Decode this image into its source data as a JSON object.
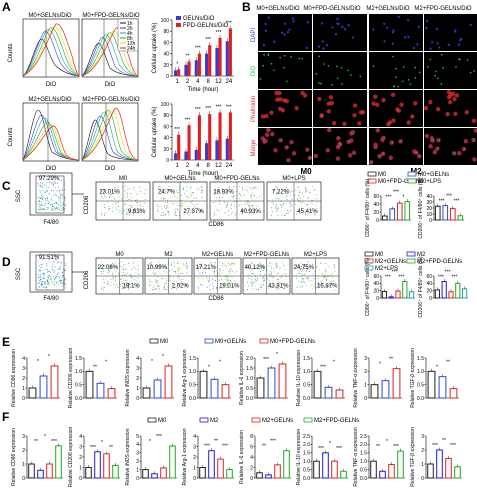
{
  "panel_labels": {
    "A": "A",
    "B": "B",
    "C": "C",
    "D": "D",
    "E": "E",
    "F": "F"
  },
  "colors": {
    "gelns": "#3a3ac8",
    "fpd": "#e02020",
    "m0": "#222222",
    "m2": "#1a1adc",
    "m2gelns": "#e02222",
    "m2fpd": "#22aa22",
    "m0lps": "#22aa22",
    "dapi": "#2d3bd0",
    "dio": "#2fc04a",
    "phall": "#e03030"
  },
  "panelA": {
    "histograms": [
      {
        "title": "M0+GELNs/DiO",
        "ylabel": "Counts",
        "xlabel": "DiO"
      },
      {
        "title": "M0+FPD-GELNs/DiO",
        "ylabel": "",
        "xlabel": "DiO"
      },
      {
        "title": "M2+GELNs/DiO",
        "ylabel": "Counts",
        "xlabel": "DiO"
      },
      {
        "title": "M2+FPD-GELNs/DiO",
        "ylabel": "",
        "xlabel": "DiO"
      }
    ],
    "time_legend": [
      "1h",
      "2h",
      "4h",
      "8h",
      "12h",
      "24h"
    ],
    "time_colors": [
      "#111111",
      "#3333dd",
      "#1aa8a8",
      "#22aa22",
      "#dddd00",
      "#ee2020"
    ]
  },
  "panelB": {
    "col_titles": [
      "M0+GELNs/DiO",
      "M0+FPD-GELNs/DiO",
      "M2+GELNs/DiO",
      "M2+FPD-GELNs/DiO"
    ],
    "row_labels": [
      "DAPI",
      "DiO",
      "Phalloidin",
      "Merge"
    ],
    "group_labels": [
      "M0",
      "M2"
    ],
    "scale_bar": "100 μm"
  },
  "panelC": {
    "scatter_gate": "97.29%",
    "ssc": "SSC",
    "f480": "F4/80",
    "cd206": "CD206",
    "cd86": "CD86",
    "quads": [
      {
        "title": "M0",
        "ul": "23.01%",
        "lr": "9.63%"
      },
      {
        "title": "M0+GELNs",
        "ul": "24.7%",
        "lr": "27.37%"
      },
      {
        "title": "M0+FPD-GELNs",
        "ul": "18.93%",
        "lr": "40.93%"
      },
      {
        "title": "M0+LPS",
        "ul": "7.22%",
        "lr": "45.41%"
      }
    ],
    "legend": [
      "M0",
      "M0+GELNs",
      "M0+FPD-GELNs",
      "M0+LPS"
    ],
    "ylab1": "CD86⁺ of F4/80⁺ cells (%)",
    "ylab2": "CD206⁺ of F4/80⁺ cells (%)"
  },
  "panelD": {
    "scatter_gate": "91.51%",
    "quads": [
      {
        "title": "M0",
        "ul": "22.08%",
        "lr": "18.1%"
      },
      {
        "title": "M2",
        "ul": "10.99%",
        "lr": "2.02%"
      },
      {
        "title": "M2+GELNs",
        "ul": "17.21%",
        "lr": "19.01%"
      },
      {
        "title": "M2+FPD-GELNs",
        "ul": "40.12%",
        "lr": "43.81%"
      },
      {
        "title": "M2+LPS",
        "ul": "24.75%",
        "lr": "16.87%"
      }
    ],
    "legend": [
      "M0",
      "M2",
      "M2+GELNs",
      "M2+FPD-GELNs",
      "M2+LPS"
    ]
  },
  "chart_data": [
    {
      "type": "bar",
      "title": "",
      "categories": [
        "1",
        "2",
        "4",
        "8",
        "12",
        "24"
      ],
      "xlabel": "Time (hour)",
      "ylabel": "Cellular uptake (%)",
      "ylim": [
        0,
        100
      ],
      "series": [
        {
          "name": "GELNs/DiO",
          "values": [
            10,
            20,
            28,
            40,
            50,
            62
          ]
        },
        {
          "name": "FPD-GELNs/DiO",
          "values": [
            12,
            26,
            40,
            55,
            68,
            85
          ]
        }
      ],
      "legend": [
        "GELNs/DiO",
        "FPD-GELNs/DiO"
      ],
      "significance": [
        "*",
        "**",
        "***",
        "***",
        "***",
        "***"
      ]
    },
    {
      "type": "bar",
      "title": "",
      "categories": [
        "1",
        "2",
        "4",
        "8",
        "12",
        "24"
      ],
      "xlabel": "Time (hour)",
      "ylabel": "Cellular uptake (%)",
      "ylim": [
        0,
        100
      ],
      "series": [
        {
          "name": "GELNs/DiO",
          "values": [
            12,
            15,
            18,
            30,
            35,
            38
          ]
        },
        {
          "name": "FPD-GELNs/DiO",
          "values": [
            45,
            62,
            80,
            82,
            85,
            85
          ]
        }
      ],
      "significance": [
        "***",
        "***",
        "***",
        "***",
        "***",
        "***"
      ]
    },
    {
      "type": "bar",
      "title": "",
      "categories": [
        "M0",
        "M0+GELNs",
        "M0+FPD-GELNs",
        "M0+LPS"
      ],
      "ylabel": "CD86⁺ of F4/80⁺ cells (%)",
      "ylim": [
        0,
        60
      ],
      "values": [
        10,
        28,
        42,
        46
      ],
      "significance": [
        "***",
        "***",
        "*"
      ]
    },
    {
      "type": "bar",
      "title": "",
      "categories": [
        "M0",
        "M0+GELNs",
        "M0+FPD-GELNs",
        "M0+LPS"
      ],
      "ylabel": "CD206⁺ of F4/80⁺ cells (%)",
      "ylim": [
        0,
        40
      ],
      "values": [
        23,
        24,
        19,
        7
      ],
      "significance": [
        "***",
        "***",
        "***"
      ]
    },
    {
      "type": "bar",
      "title": "",
      "categories": [
        "M0",
        "M2",
        "M2+GELNs",
        "M2+FPD-GELNs",
        "M2+LPS"
      ],
      "ylabel": "CD86⁺ of F4/80⁺ cells (%)",
      "ylim": [
        0,
        60
      ],
      "values": [
        18,
        3,
        19,
        45,
        17
      ],
      "significance": [
        "***",
        "***",
        "***"
      ]
    },
    {
      "type": "bar",
      "title": "",
      "categories": [
        "M0",
        "M2",
        "M2+GELNs",
        "M2+FPD-GELNs",
        "M2+LPS"
      ],
      "ylabel": "CD206⁺ of F4/80⁺ cells (%)",
      "ylim": [
        0,
        60
      ],
      "values": [
        22,
        45,
        17,
        40,
        25
      ],
      "significance": [
        "***",
        "***",
        "***"
      ]
    },
    {
      "type": "bar",
      "title": "",
      "legend": [
        "M0",
        "M0+GELNs",
        "M0+FPD-GELNs"
      ],
      "categories": [
        "M0",
        "M0+GELNs",
        "M0+FPD-GELNs"
      ],
      "genes": [
        {
          "ylabel": "Relative CD86 expression",
          "values": [
            1,
            2.2,
            3.2
          ],
          "ylim": [
            0,
            4
          ],
          "ticks": [
            "0",
            "1",
            "2",
            "3",
            "4"
          ],
          "sig": [
            "*",
            "*"
          ]
        },
        {
          "ylabel": "Relative CD206 expression",
          "values": [
            1,
            0.55,
            0.35
          ],
          "ylim": [
            0,
            1.5
          ],
          "ticks": [
            "0.0",
            "0.5",
            "1.0",
            "1.5"
          ],
          "sig": [
            "**",
            "*"
          ]
        },
        {
          "ylabel": "Relative iNOS expression",
          "values": [
            1,
            1.8,
            3.2
          ],
          "ylim": [
            0,
            4
          ],
          "ticks": [
            "0",
            "1",
            "2",
            "3",
            "4"
          ],
          "sig": [
            "*",
            "*"
          ]
        },
        {
          "ylabel": "Relative Arg-1 expression",
          "values": [
            1,
            0.7,
            0.5
          ],
          "ylim": [
            0,
            1.5
          ],
          "ticks": [
            "0.0",
            "0.5",
            "1.0",
            "1.5"
          ],
          "sig": [
            "*",
            "*"
          ]
        },
        {
          "ylabel": "Relative IL-6 expression",
          "values": [
            1,
            1.5,
            1.7
          ],
          "ylim": [
            0,
            2.0
          ],
          "ticks": [
            "0.0",
            "0.5",
            "1.0",
            "1.5",
            "2.0"
          ],
          "sig": [
            "***",
            "*"
          ]
        },
        {
          "ylabel": "Relative IL-10 expression",
          "values": [
            1,
            0.4,
            0.3
          ],
          "ylim": [
            0,
            1.5
          ],
          "ticks": [
            "0.0",
            "0.5",
            "1.0",
            "1.5"
          ],
          "sig": [
            "***",
            "*"
          ]
        },
        {
          "ylabel": "Relative TNF-α expression",
          "values": [
            1,
            1.3,
            2.2
          ],
          "ylim": [
            0,
            3
          ],
          "ticks": [
            "0",
            "1",
            "2",
            "3"
          ],
          "sig": [
            "*",
            "**"
          ]
        },
        {
          "ylabel": "Relative TGF-β expression",
          "values": [
            1,
            0.8,
            0.35
          ],
          "ylim": [
            0,
            1.5
          ],
          "ticks": [
            "0.0",
            "0.5",
            "1.0",
            "1.5"
          ],
          "sig": [
            "*",
            "**"
          ]
        }
      ]
    },
    {
      "type": "bar",
      "title": "",
      "legend": [
        "M0",
        "M2",
        "M2+GELNs",
        "M2+FPD-GELNs"
      ],
      "categories": [
        "M0",
        "M2",
        "M2+GELNs",
        "M2+FPD-GELNs"
      ],
      "genes": [
        {
          "ylabel": "Relative CD86 expression",
          "values": [
            1,
            0.55,
            1.0,
            2.3
          ],
          "ylim": [
            0,
            3
          ],
          "ticks": [
            "0",
            "1",
            "2",
            "3"
          ],
          "sig": [
            "**",
            "*",
            "***"
          ]
        },
        {
          "ylabel": "Relative CD206 expression",
          "values": [
            1,
            2.5,
            2.3,
            1.2
          ],
          "ylim": [
            0,
            4
          ],
          "ticks": [
            "0",
            "1",
            "2",
            "3",
            "4"
          ],
          "sig": [
            "***",
            "*",
            "**"
          ]
        },
        {
          "ylabel": "Relative iNOS expression",
          "values": [
            1,
            0.5,
            1.2,
            3.8
          ],
          "ylim": [
            0,
            5
          ],
          "ticks": [
            "0",
            "1",
            "2",
            "3",
            "4",
            "5"
          ],
          "sig": [
            "*",
            "***"
          ]
        },
        {
          "ylabel": "Relative Arg-1 expression",
          "values": [
            1,
            2.6,
            1.8,
            0.8
          ],
          "ylim": [
            0,
            4
          ],
          "ticks": [
            "0",
            "1",
            "2",
            "3",
            "4"
          ],
          "sig": [
            "***",
            "**",
            "***"
          ]
        },
        {
          "ylabel": "Relative IL-6 expression",
          "values": [
            1,
            0.6,
            2.5,
            5.2
          ],
          "ylim": [
            0,
            8
          ],
          "ticks": [
            "0",
            "2",
            "4",
            "6",
            "8"
          ],
          "sig": [
            "**",
            "***"
          ]
        },
        {
          "ylabel": "Relative IL-10 expression",
          "values": [
            1,
            1.5,
            1.0,
            0.4
          ],
          "ylim": [
            0,
            2.5
          ],
          "ticks": [
            "0.0",
            "0.5",
            "1.0",
            "1.5",
            "2.0",
            "2.5"
          ],
          "sig": [
            "***",
            "*",
            "***"
          ]
        },
        {
          "ylabel": "Relative TNF-α expression",
          "values": [
            1,
            0.4,
            0.8,
            1.6
          ],
          "ylim": [
            0,
            2.5
          ],
          "ticks": [
            "0.0",
            "0.5",
            "1.0",
            "1.5",
            "2.0",
            "2.5"
          ],
          "sig": [
            "**",
            "*",
            "***"
          ]
        },
        {
          "ylabel": "Relative TGF-β expression",
          "values": [
            1,
            2.0,
            1.4,
            0.8
          ],
          "ylim": [
            0,
            3
          ],
          "ticks": [
            "0",
            "1",
            "2",
            "3"
          ],
          "sig": [
            "***",
            "**",
            "***"
          ]
        }
      ]
    }
  ]
}
